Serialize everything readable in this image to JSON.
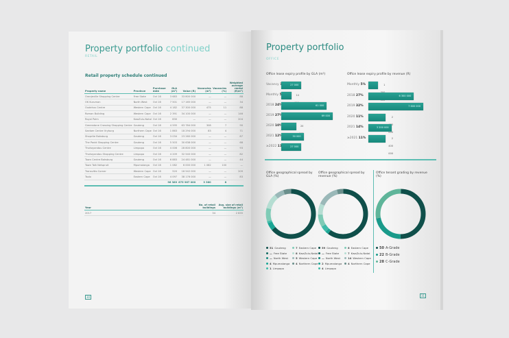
{
  "left": {
    "title": "Property portfolio",
    "title_suffix": "continued",
    "section": "RETAIL",
    "table_title": "Retail property schedule continued",
    "columns": [
      "Property name",
      "Province",
      "Purchase date",
      "GLA (m²)",
      "Value (R)",
      "Vacancies (m²)",
      "Vacancies (%)",
      "Weighted average rental (R/m²)"
    ],
    "rows": [
      [
        "Oranjeville Shopping Centre",
        "Free State",
        "Oct 16",
        "3 683",
        "33 800 000",
        "—",
        "—",
        "88"
      ],
      [
        "OK Kuruman",
        "North West",
        "Oct 16",
        "7 501",
        "17 165 000",
        "—",
        "—",
        "34"
      ],
      [
        "Oudehus Centre",
        "Western Cape",
        "Oct 16",
        "4 182",
        "37 300 000",
        "475",
        "11",
        "88"
      ],
      [
        "Roman Building",
        "Western Cape",
        "Oct 16",
        "2 391",
        "34 100 000",
        "—",
        "—",
        "146"
      ],
      [
        "Royal Palm",
        "KwaZulu-Natal",
        "Oct 16",
        "830",
        "—",
        "—",
        "—",
        "204"
      ],
      [
        "Greenstone Crossing Shopping Centre",
        "Gauteng",
        "Oct 16",
        "4 595",
        "63 784 000",
        "308",
        "7",
        "90"
      ],
      [
        "Saelam Centre Vryburg",
        "Northern Cape",
        "Oct 16",
        "1 863",
        "18 294 000",
        "83",
        "4",
        "71"
      ],
      [
        "Shoprite Boksburg",
        "Gauteng",
        "Oct 16",
        "3 034",
        "23 260 000",
        "—",
        "—",
        "87"
      ],
      [
        "The Pavid Shopping Centre",
        "Gauteng",
        "Oct 16",
        "5 503",
        "30 638 000",
        "—",
        "—",
        "68"
      ],
      [
        "Thohoyandou Centre",
        "Limpopo",
        "Oct 16",
        "4 006",
        "28 800 000",
        "—",
        "—",
        "93"
      ],
      [
        "Thohoyandou Shopping Centre",
        "Limpopo",
        "Oct 16",
        "4 209",
        "32 540 000",
        "—",
        "—",
        "82"
      ],
      [
        "Town Centre Boksburg",
        "Gauteng",
        "Oct 16",
        "6 883",
        "24 481 000",
        "—",
        "—",
        "44"
      ],
      [
        "Town Talk Nelspruit",
        "Mpumalanga",
        "Oct 16",
        "1 082",
        "6 000 000",
        "1 082",
        "100",
        "—"
      ],
      [
        "Transvitto Corner",
        "Western Cape",
        "Oct 16",
        "520",
        "18 542 000",
        "—",
        "—",
        "209"
      ],
      [
        "Tsolo",
        "Eastern Cape",
        "Oct 16",
        "4 097",
        "38 176 000",
        "—",
        "—",
        "83"
      ]
    ],
    "totals": [
      "",
      "",
      "",
      "96 389",
      "675 967 000",
      "3 360",
      "8",
      ""
    ],
    "table2_columns": [
      "Year",
      "No. of retail buildings",
      "Avg. size of retail buildings (m²)"
    ],
    "table2_rows": [
      [
        "2017",
        "34",
        "2 835"
      ]
    ],
    "page_number": "30"
  },
  "right": {
    "title": "Property portfolio",
    "section": "OFFICE",
    "gla_chart": {
      "title": "Office lease expiry profile by GLA (m²)",
      "type": "bar",
      "categories": [
        "Vacancy",
        "Monthly",
        "2018",
        "2019",
        "2020",
        "2021",
        "≥2022"
      ],
      "percents": [
        "11%",
        "5%",
        "24%",
        "27%",
        "10%",
        "12%",
        "11%"
      ],
      "values": [
        27000,
        14000,
        61000,
        69000,
        20000,
        30000,
        27000
      ],
      "value_labels": [
        "27 000",
        "14 000",
        "61 000",
        "69 000",
        "20 000",
        "30 000",
        "27 000"
      ]
    },
    "rev_chart": {
      "title": "Office lease expiry profile by revenue (R)",
      "type": "bar",
      "categories": [
        "Monthly",
        "2018",
        "2019",
        "2020",
        "2021",
        "≥2021"
      ],
      "percents": [
        "5%",
        "27%",
        "32%",
        "11%",
        "14%",
        "11%"
      ],
      "values": [
        1300000,
        6300000,
        7600000,
        2400000,
        3200000,
        2400000
      ],
      "value_labels": [
        "1 300 000",
        "6 300 000",
        "7 600 000",
        "2 400 000",
        "3 200 000",
        "2 400 000"
      ]
    },
    "donuts": [
      {
        "title": "Office geographical spread by GLA (%)",
        "type": "pie",
        "items": [
          {
            "v": "51",
            "label": "Gauteng",
            "c": "#0f4f4a"
          },
          {
            "v": "—",
            "label": "Free State",
            "c": "#136a62"
          },
          {
            "v": "—",
            "label": "North West",
            "c": "#178a7e"
          },
          {
            "v": "4",
            "label": "Mpumalanga",
            "c": "#1aa594"
          },
          {
            "v": "1",
            "label": "Limpopo",
            "c": "#3fbba9"
          },
          {
            "v": "7",
            "label": "Eastern Cape",
            "c": "#7fcbb6"
          },
          {
            "v": "8",
            "label": "KwaZulu-Natal",
            "c": "#b5ddd2"
          },
          {
            "v": "5",
            "label": "Western Cape",
            "c": "#9ab8b8"
          },
          {
            "v": "4",
            "label": "Northern Cape",
            "c": "#6a8f8c"
          }
        ]
      },
      {
        "title": "Office geographical spread by revenue (%)",
        "type": "pie",
        "items": [
          {
            "v": "59",
            "label": "Gauteng",
            "c": "#0f4f4a"
          },
          {
            "v": "—",
            "label": "Free State",
            "c": "#136a62"
          },
          {
            "v": "—",
            "label": "North West",
            "c": "#178a7e"
          },
          {
            "v": "2",
            "label": "Mpumalanga",
            "c": "#1aa594"
          },
          {
            "v": "4",
            "label": "Limpopo",
            "c": "#3fbba9"
          },
          {
            "v": "8",
            "label": "Eastern Cape",
            "c": "#7fcbb6"
          },
          {
            "v": "7",
            "label": "KwaZulu-Natal",
            "c": "#b5ddd2"
          },
          {
            "v": "14",
            "label": "Western Cape",
            "c": "#9ab8b8"
          },
          {
            "v": "4",
            "label": "Northern Cape",
            "c": "#6a8f8c"
          }
        ]
      },
      {
        "title": "Office tenant grading by revenue (%)",
        "type": "pie",
        "items": [
          {
            "v": "50",
            "label": "A-Grade",
            "c": "#0f4f4a"
          },
          {
            "v": "22",
            "label": "B-Grade",
            "c": "#1a9a8a"
          },
          {
            "v": "28",
            "label": "C-Grade",
            "c": "#5fb59a"
          }
        ]
      }
    ],
    "page_number": "31"
  }
}
